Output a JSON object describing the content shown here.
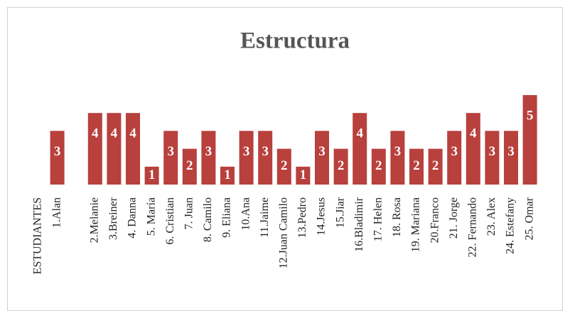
{
  "chart_data": {
    "type": "bar",
    "title": "Estructura",
    "categories": [
      "ESTUDIANTES",
      "1.Alan",
      null,
      "2.Melanie",
      "3.Breiner",
      "4. Danna",
      "5. María",
      "6. Cristian",
      "7. Juan",
      "8. Camilo",
      "9. Eliana",
      "10.Ana",
      "11.Jaime",
      "12.Juan Camilo",
      "13.Pedro",
      "14.Jesus",
      "15.Jiar",
      "16.Bladimir",
      "17. Helen",
      "18. Rosa",
      "19. Mariana",
      "20.Franco",
      "21. Jorge",
      "22. Fernando",
      "23. Alex",
      "24. Estefany",
      "25. Omar"
    ],
    "values": [
      null,
      3,
      null,
      4,
      4,
      4,
      1,
      3,
      2,
      3,
      1,
      3,
      3,
      2,
      1,
      3,
      2,
      4,
      2,
      3,
      2,
      2,
      3,
      4,
      3,
      3,
      5
    ],
    "color": "#b8403d",
    "ylim": [
      0,
      5
    ]
  }
}
